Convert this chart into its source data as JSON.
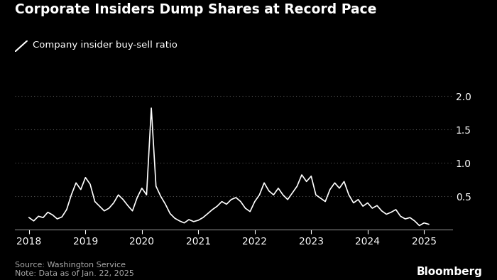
{
  "title": "Corporate Insiders Dump Shares at Record Pace",
  "legend_label": "Company insider buy-sell ratio",
  "source_text": "Source: Washington Service\nNote: Data as of Jan. 22, 2025",
  "bloomberg_text": "Bloomberg",
  "background_color": "#000000",
  "line_color": "#ffffff",
  "grid_color": "#555555",
  "text_color": "#ffffff",
  "source_color": "#aaaaaa",
  "yticks": [
    0.5,
    1.0,
    1.5,
    2.0
  ],
  "ylim": [
    0.0,
    2.18
  ],
  "xlim_start": 2017.75,
  "xlim_end": 2025.5,
  "x_tick_years": [
    2018,
    2019,
    2020,
    2021,
    2022,
    2023,
    2024,
    2025
  ],
  "data": [
    [
      2018.0,
      0.18
    ],
    [
      2018.083,
      0.13
    ],
    [
      2018.167,
      0.2
    ],
    [
      2018.25,
      0.18
    ],
    [
      2018.333,
      0.26
    ],
    [
      2018.417,
      0.22
    ],
    [
      2018.5,
      0.16
    ],
    [
      2018.583,
      0.19
    ],
    [
      2018.667,
      0.3
    ],
    [
      2018.75,
      0.52
    ],
    [
      2018.833,
      0.7
    ],
    [
      2018.917,
      0.6
    ],
    [
      2019.0,
      0.78
    ],
    [
      2019.083,
      0.68
    ],
    [
      2019.167,
      0.42
    ],
    [
      2019.25,
      0.35
    ],
    [
      2019.333,
      0.28
    ],
    [
      2019.417,
      0.32
    ],
    [
      2019.5,
      0.4
    ],
    [
      2019.583,
      0.52
    ],
    [
      2019.667,
      0.45
    ],
    [
      2019.75,
      0.36
    ],
    [
      2019.833,
      0.28
    ],
    [
      2019.917,
      0.48
    ],
    [
      2020.0,
      0.62
    ],
    [
      2020.083,
      0.52
    ],
    [
      2020.167,
      1.82
    ],
    [
      2020.25,
      0.65
    ],
    [
      2020.333,
      0.5
    ],
    [
      2020.417,
      0.38
    ],
    [
      2020.5,
      0.24
    ],
    [
      2020.583,
      0.17
    ],
    [
      2020.667,
      0.13
    ],
    [
      2020.75,
      0.1
    ],
    [
      2020.833,
      0.15
    ],
    [
      2020.917,
      0.12
    ],
    [
      2021.0,
      0.14
    ],
    [
      2021.083,
      0.18
    ],
    [
      2021.167,
      0.24
    ],
    [
      2021.25,
      0.3
    ],
    [
      2021.333,
      0.35
    ],
    [
      2021.417,
      0.42
    ],
    [
      2021.5,
      0.38
    ],
    [
      2021.583,
      0.45
    ],
    [
      2021.667,
      0.48
    ],
    [
      2021.75,
      0.42
    ],
    [
      2021.833,
      0.32
    ],
    [
      2021.917,
      0.27
    ],
    [
      2022.0,
      0.42
    ],
    [
      2022.083,
      0.52
    ],
    [
      2022.167,
      0.7
    ],
    [
      2022.25,
      0.58
    ],
    [
      2022.333,
      0.52
    ],
    [
      2022.417,
      0.62
    ],
    [
      2022.5,
      0.52
    ],
    [
      2022.583,
      0.45
    ],
    [
      2022.667,
      0.55
    ],
    [
      2022.75,
      0.65
    ],
    [
      2022.833,
      0.82
    ],
    [
      2022.917,
      0.72
    ],
    [
      2023.0,
      0.8
    ],
    [
      2023.083,
      0.52
    ],
    [
      2023.167,
      0.47
    ],
    [
      2023.25,
      0.42
    ],
    [
      2023.333,
      0.6
    ],
    [
      2023.417,
      0.7
    ],
    [
      2023.5,
      0.62
    ],
    [
      2023.583,
      0.72
    ],
    [
      2023.667,
      0.52
    ],
    [
      2023.75,
      0.4
    ],
    [
      2023.833,
      0.45
    ],
    [
      2023.917,
      0.35
    ],
    [
      2024.0,
      0.4
    ],
    [
      2024.083,
      0.32
    ],
    [
      2024.167,
      0.36
    ],
    [
      2024.25,
      0.28
    ],
    [
      2024.333,
      0.23
    ],
    [
      2024.417,
      0.26
    ],
    [
      2024.5,
      0.3
    ],
    [
      2024.583,
      0.2
    ],
    [
      2024.667,
      0.16
    ],
    [
      2024.75,
      0.18
    ],
    [
      2024.833,
      0.13
    ],
    [
      2024.917,
      0.06
    ],
    [
      2025.0,
      0.1
    ],
    [
      2025.083,
      0.08
    ]
  ]
}
